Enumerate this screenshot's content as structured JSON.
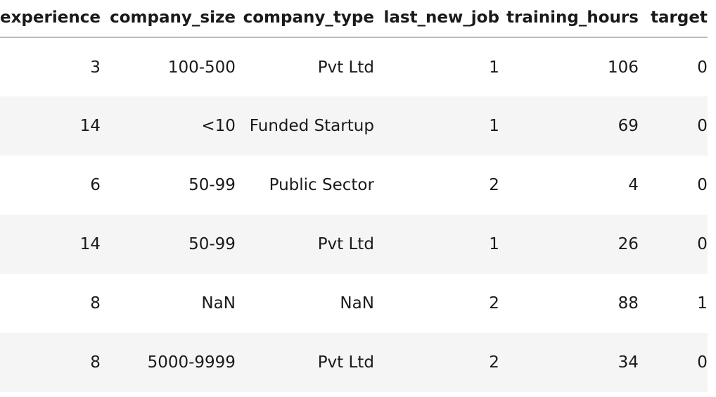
{
  "columns": [
    "experience",
    "company_size",
    "company_type",
    "last_new_job",
    "training_hours",
    "target"
  ],
  "rows": [
    [
      "3",
      "100-500",
      "Pvt Ltd",
      "1",
      "106",
      "0"
    ],
    [
      "14",
      "<10",
      "Funded Startup",
      "1",
      "69",
      "0"
    ],
    [
      "6",
      "50-99",
      "Public Sector",
      "2",
      "4",
      "0"
    ],
    [
      "14",
      "50-99",
      "Pvt Ltd",
      "1",
      "26",
      "0"
    ],
    [
      "8",
      "NaN",
      "NaN",
      "2",
      "88",
      "1"
    ],
    [
      "8",
      "5000-9999",
      "Pvt Ltd",
      "2",
      "34",
      "0"
    ]
  ]
}
